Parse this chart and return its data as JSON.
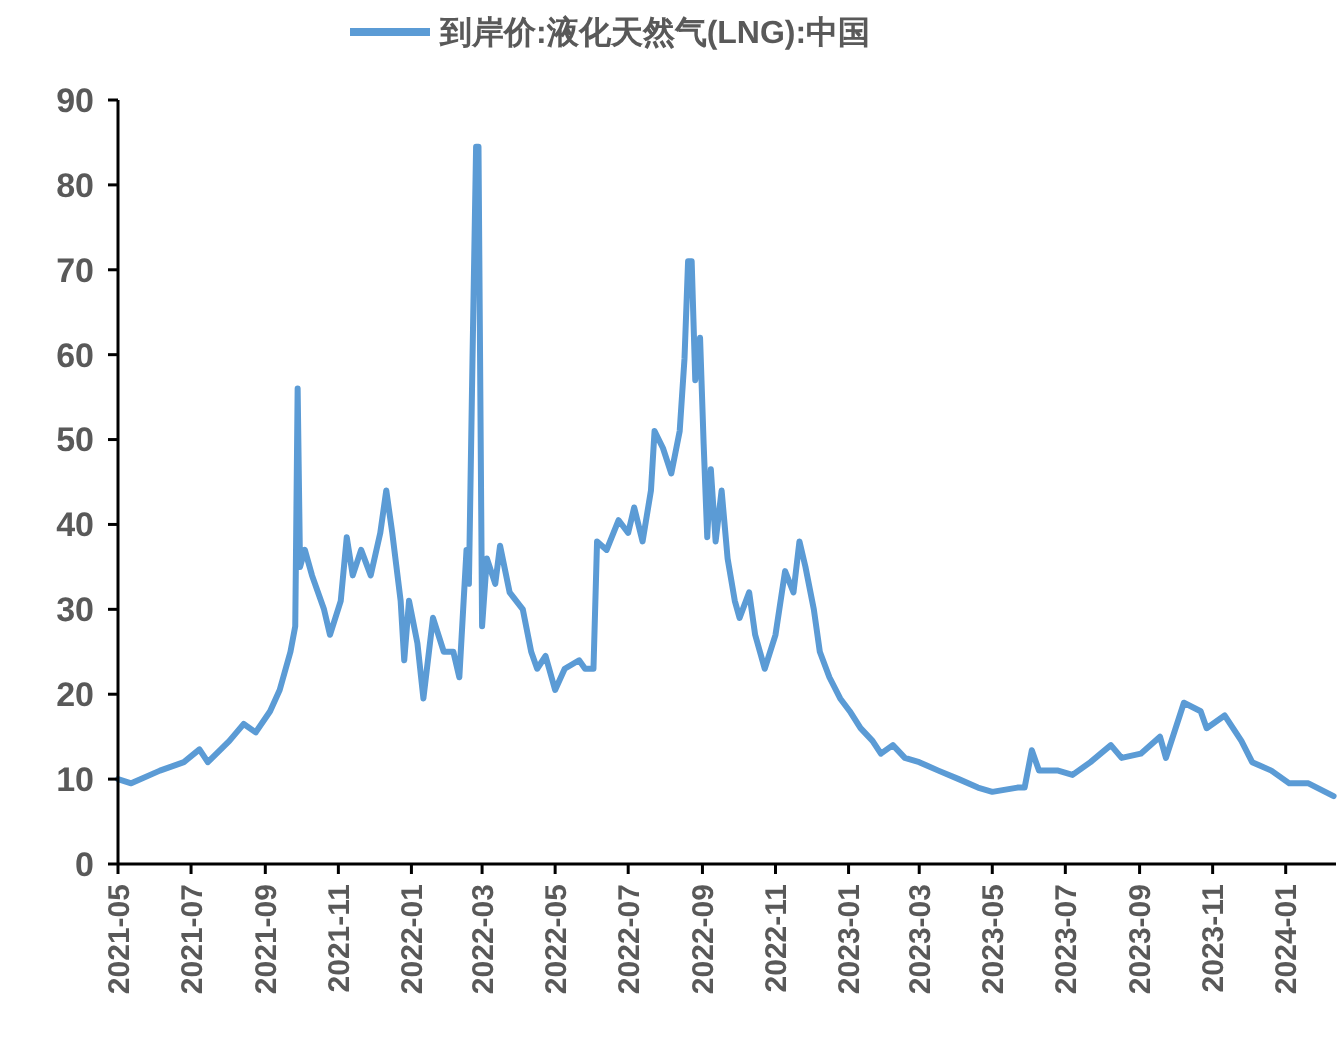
{
  "chart_data": {
    "type": "line",
    "legend": "top",
    "grid": false,
    "marker": "none",
    "line_style": "solid",
    "xlim": [
      "2021-05-01",
      "2024-02-12"
    ],
    "ylim": [
      0,
      90
    ],
    "yticks": [
      0,
      10,
      20,
      30,
      40,
      50,
      60,
      70,
      80,
      90
    ],
    "xticks": [
      "2021-05",
      "2021-07",
      "2021-09",
      "2021-11",
      "2022-01",
      "2022-03",
      "2022-05",
      "2022-07",
      "2022-09",
      "2022-11",
      "2023-01",
      "2023-03",
      "2023-05",
      "2023-07",
      "2023-09",
      "2023-11",
      "2024-01"
    ],
    "series": [
      {
        "name": "到岸价:液化天然气(LNG):中国",
        "color": "#5b9bd5",
        "x": [
          "2021-05-01",
          "2021-05-12",
          "2021-06-05",
          "2021-06-25",
          "2021-07-08",
          "2021-07-15",
          "2021-08-02",
          "2021-08-14",
          "2021-08-24",
          "2021-09-05",
          "2021-09-13",
          "2021-09-22",
          "2021-09-26",
          "2021-09-28",
          "2021-09-30",
          "2021-10-04",
          "2021-10-10",
          "2021-10-20",
          "2021-10-25",
          "2021-11-03",
          "2021-11-08",
          "2021-11-13",
          "2021-11-20",
          "2021-11-28",
          "2021-12-06",
          "2021-12-11",
          "2021-12-16",
          "2021-12-23",
          "2021-12-26",
          "2021-12-30",
          "2022-01-06",
          "2022-01-11",
          "2022-01-19",
          "2022-01-28",
          "2022-02-05",
          "2022-02-10",
          "2022-02-16",
          "2022-02-18",
          "2022-02-21",
          "2022-02-24",
          "2022-02-26",
          "2022-03-01",
          "2022-03-05",
          "2022-03-12",
          "2022-03-16",
          "2022-03-24",
          "2022-04-04",
          "2022-04-11",
          "2022-04-16",
          "2022-04-23",
          "2022-05-01",
          "2022-05-09",
          "2022-05-21",
          "2022-05-26",
          "2022-06-02",
          "2022-06-05",
          "2022-06-13",
          "2022-06-23",
          "2022-07-01",
          "2022-07-06",
          "2022-07-13",
          "2022-07-20",
          "2022-07-23",
          "2022-07-30",
          "2022-08-06",
          "2022-08-13",
          "2022-08-17",
          "2022-08-20",
          "2022-08-23",
          "2022-08-26",
          "2022-08-30",
          "2022-09-02",
          "2022-09-05",
          "2022-09-08",
          "2022-09-12",
          "2022-09-17",
          "2022-09-22",
          "2022-09-28",
          "2022-10-02",
          "2022-10-10",
          "2022-10-15",
          "2022-10-23",
          "2022-11-01",
          "2022-11-09",
          "2022-11-16",
          "2022-11-21",
          "2022-11-26",
          "2022-12-03",
          "2022-12-08",
          "2022-12-16",
          "2022-12-25",
          "2023-01-02",
          "2023-01-11",
          "2023-01-21",
          "2023-01-28",
          "2023-02-07",
          "2023-02-17",
          "2023-03-01",
          "2023-03-17",
          "2023-04-03",
          "2023-04-19",
          "2023-05-01",
          "2023-05-22",
          "2023-05-28",
          "2023-06-03",
          "2023-06-09",
          "2023-06-25",
          "2023-07-07",
          "2023-07-22",
          "2023-08-08",
          "2023-08-17",
          "2023-09-02",
          "2023-09-18",
          "2023-09-23",
          "2023-10-08",
          "2023-10-22",
          "2023-10-27",
          "2023-11-11",
          "2023-11-25",
          "2023-12-04",
          "2023-12-20",
          "2024-01-04",
          "2024-01-20",
          "2024-02-10"
        ],
        "values": [
          10,
          9.5,
          11,
          12,
          13.5,
          12,
          14.5,
          16.5,
          15.5,
          18,
          20.5,
          25,
          28,
          56,
          35,
          37,
          34,
          30,
          27,
          31,
          38.5,
          34,
          37,
          34,
          39,
          44,
          39,
          31,
          24,
          31,
          26,
          19.5,
          29,
          25,
          25,
          22,
          37,
          33,
          59.5,
          84.5,
          84.5,
          28,
          36,
          33,
          37.5,
          32,
          30,
          25,
          23,
          24.5,
          20.5,
          23,
          24,
          23,
          23,
          38,
          37,
          40.5,
          39,
          42,
          38,
          44,
          51,
          49,
          46,
          51,
          59.5,
          71,
          71,
          57,
          62,
          49.5,
          38.5,
          46.5,
          38,
          44,
          36,
          31,
          29,
          32,
          27,
          23,
          27,
          34.5,
          32,
          38,
          35,
          30,
          25,
          22,
          19.5,
          18,
          16,
          14.5,
          13,
          14,
          12.5,
          12,
          11,
          10,
          9,
          8.5,
          9,
          9,
          13.4,
          11,
          11,
          10.5,
          12,
          14,
          12.5,
          13,
          15,
          12.5,
          19,
          18,
          16,
          17.5,
          14.5,
          12,
          11,
          9.5,
          9.5,
          8
        ]
      }
    ]
  }
}
